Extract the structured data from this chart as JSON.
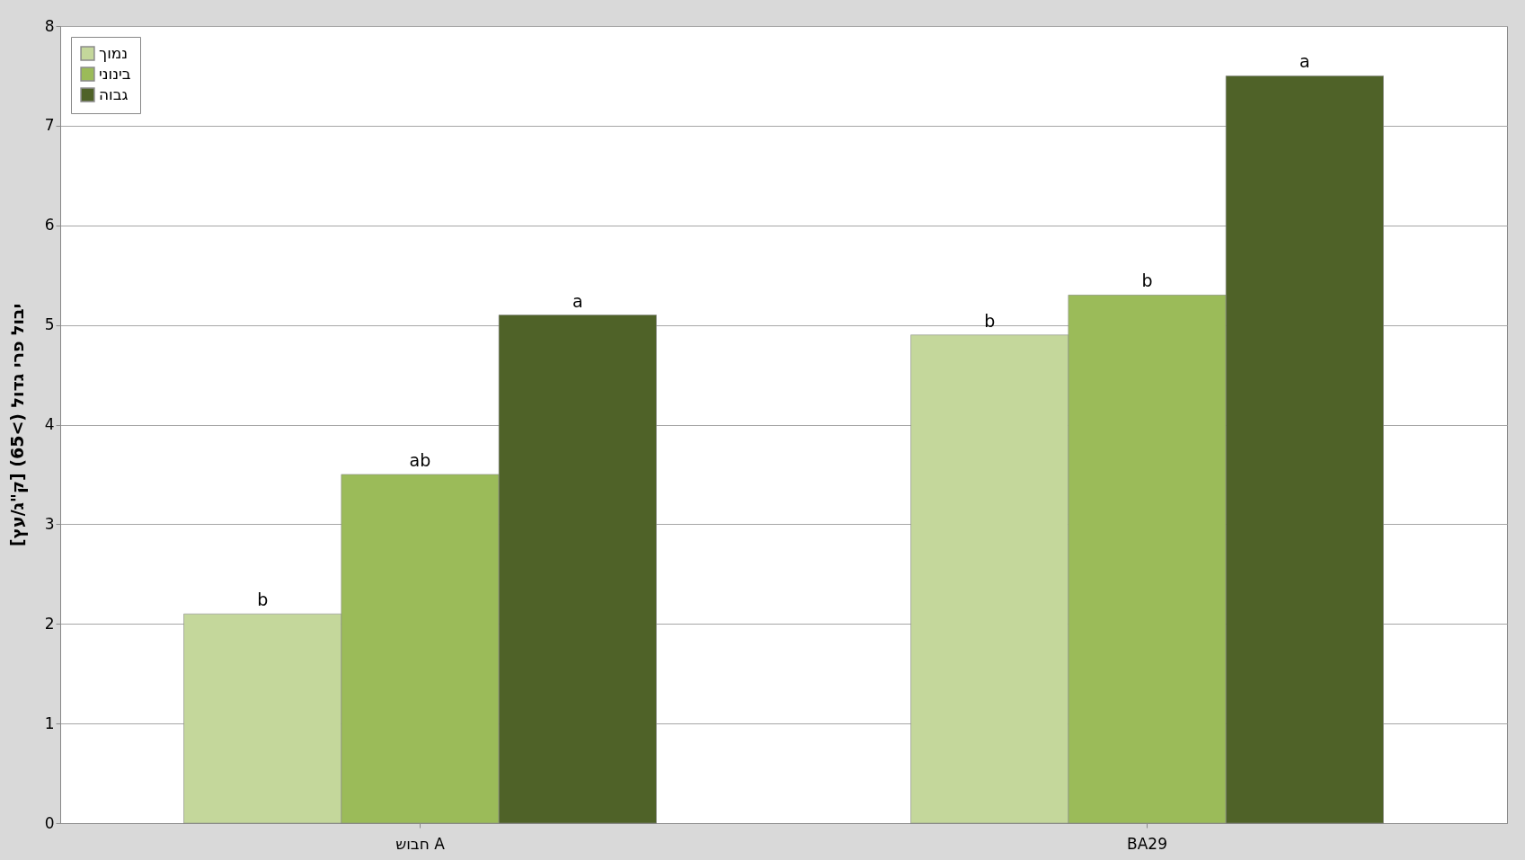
{
  "chart_data": {
    "type": "bar",
    "ylabel": "יבול פרי גדול (>65) [ק\"ג/עץ]",
    "categories": [
      "חבוש A",
      "BA29"
    ],
    "series": [
      {
        "name": "נמוך",
        "color": "#c4d79b",
        "values": [
          2.1,
          4.9
        ]
      },
      {
        "name": "בינוני",
        "color": "#9bbb59",
        "values": [
          3.5,
          5.3
        ]
      },
      {
        "name": "גבוה",
        "color": "#4f6228",
        "values": [
          5.1,
          7.5
        ]
      }
    ],
    "ylim": [
      0,
      8
    ],
    "yticks": [
      0,
      1,
      2,
      3,
      4,
      5,
      6,
      7,
      8
    ],
    "grid": "y",
    "legend": "top left",
    "annotations": [
      "b",
      "ab",
      "a",
      "b",
      "b",
      "a"
    ]
  }
}
